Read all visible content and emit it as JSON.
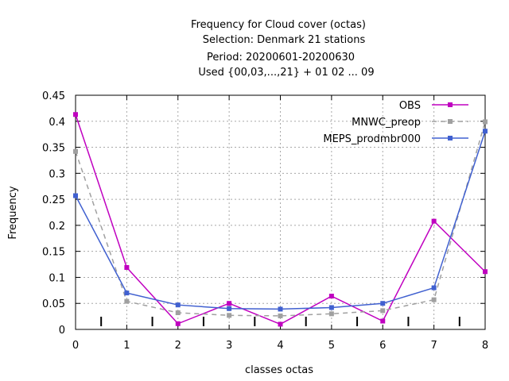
{
  "chart_data": {
    "type": "line",
    "title_lines": [
      "Frequency  for Cloud cover (octas)",
      "Selection: Denmark     21 stations",
      "Period: 20200601-20200630",
      "Used {00,03,...,21} + 01 02 ... 09"
    ],
    "xlabel": "classes octas",
    "ylabel": "Frequency",
    "x": [
      0,
      1,
      2,
      3,
      4,
      5,
      6,
      7,
      8
    ],
    "xlim": [
      0,
      8
    ],
    "ylim": [
      0,
      0.45
    ],
    "x_ticks": [
      "0",
      "1",
      "2",
      "3",
      "4",
      "5",
      "6",
      "7",
      "8"
    ],
    "y_ticks": [
      "0",
      "0.05",
      "0.1",
      "0.15",
      "0.2",
      "0.25",
      "0.3",
      "0.35",
      "0.4",
      "0.45"
    ],
    "y_tick_values": [
      0,
      0.05,
      0.1,
      0.15,
      0.2,
      0.25,
      0.3,
      0.35,
      0.4,
      0.45
    ],
    "grid": true,
    "legend_position": "top-right",
    "series": [
      {
        "name": "OBS",
        "color": "#c000c0",
        "dash": "solid",
        "values": [
          0.413,
          0.119,
          0.011,
          0.05,
          0.01,
          0.064,
          0.016,
          0.208,
          0.111
        ]
      },
      {
        "name": "MNWC_preop",
        "color": "#a0a0a0",
        "dash": "dashed",
        "values": [
          0.342,
          0.054,
          0.032,
          0.027,
          0.026,
          0.03,
          0.036,
          0.057,
          0.399
        ]
      },
      {
        "name": "MEPS_prodmbr000",
        "color": "#4060d0",
        "dash": "solid",
        "values": [
          0.257,
          0.07,
          0.047,
          0.04,
          0.039,
          0.042,
          0.05,
          0.08,
          0.381
        ]
      }
    ]
  }
}
